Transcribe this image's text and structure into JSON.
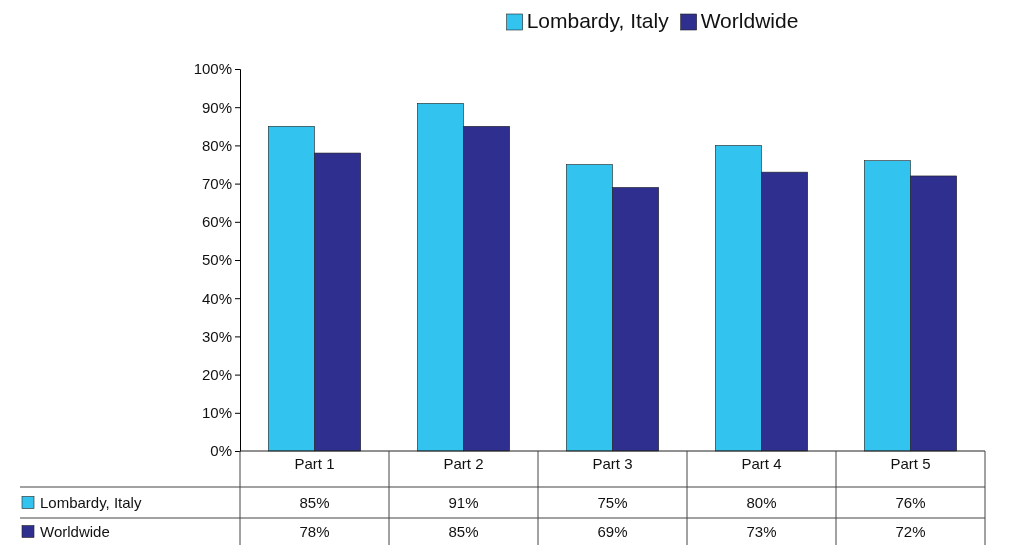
{
  "chart_data": {
    "type": "bar",
    "categories": [
      "Part 1",
      "Part 2",
      "Part 3",
      "Part 4",
      "Part 5"
    ],
    "series": [
      {
        "name": "Lombardy, Italy",
        "color": "#33c3ef",
        "values": [
          85,
          91,
          75,
          80,
          76
        ],
        "value_labels": [
          "85%",
          "91%",
          "75%",
          "80%",
          "76%"
        ]
      },
      {
        "name": "Worldwide",
        "color": "#2e2f8e",
        "values": [
          78,
          85,
          69,
          73,
          72
        ],
        "value_labels": [
          "78%",
          "85%",
          "69%",
          "73%",
          "72%"
        ]
      }
    ],
    "ylim": [
      0,
      100
    ],
    "yticks": [
      {
        "value": 0,
        "label": "0%"
      },
      {
        "value": 10,
        "label": "10%"
      },
      {
        "value": 20,
        "label": "20%"
      },
      {
        "value": 30,
        "label": "30%"
      },
      {
        "value": 40,
        "label": "40%"
      },
      {
        "value": 50,
        "label": "50%"
      },
      {
        "value": 60,
        "label": "60%"
      },
      {
        "value": 70,
        "label": "70%"
      },
      {
        "value": 80,
        "label": "80%"
      },
      {
        "value": 90,
        "label": "90%"
      },
      {
        "value": 100,
        "label": "100%"
      }
    ],
    "legend": "top",
    "grid": false
  }
}
